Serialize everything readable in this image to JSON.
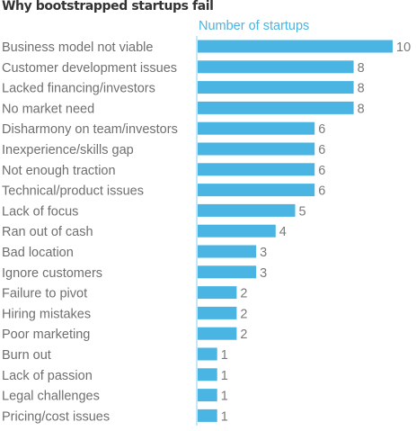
{
  "chart_data": {
    "type": "bar",
    "orientation": "horizontal",
    "title": "Why bootstrapped startups fail",
    "series": [
      {
        "name": "Number of startups",
        "values": [
          10,
          8,
          8,
          8,
          6,
          6,
          6,
          6,
          5,
          4,
          3,
          3,
          2,
          2,
          2,
          1,
          1,
          1,
          1
        ]
      }
    ],
    "categories": [
      "Business model not viable",
      "Customer development issues",
      "Lacked financing/investors",
      "No market need",
      "Disharmony on team/investors",
      "Inexperience/skills gap",
      "Not enough traction",
      "Technical/product issues",
      "Lack of focus",
      "Ran out of cash",
      "Bad location",
      "Ignore customers",
      "Failure to pivot",
      "Hiring mistakes",
      "Poor marketing",
      "Burn out",
      "Lack of passion",
      "Legal challenges",
      "Pricing/cost issues"
    ],
    "xlim": [
      0,
      10
    ],
    "grid": false,
    "legend": "top-left of plot area",
    "colors": {
      "bar": "#4ab5e3",
      "series_label": "#4ab5e3",
      "axis_line": "#8fcfee",
      "category_text": "#6f6f6f",
      "value_text": "#7a7a7a",
      "title": "#333333"
    }
  }
}
